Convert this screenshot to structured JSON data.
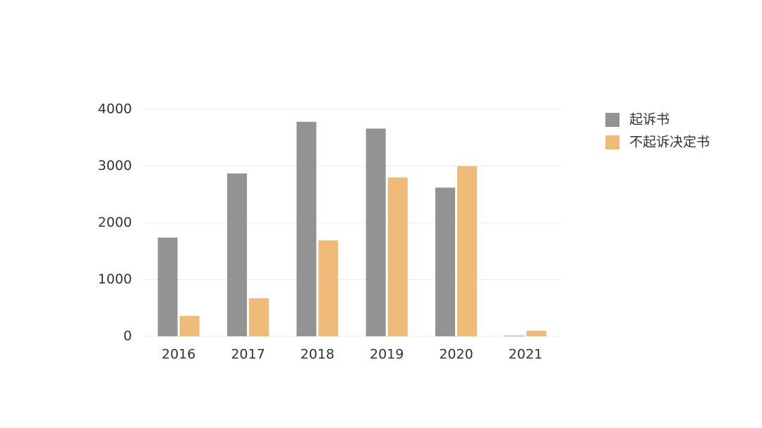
{
  "chart_data": {
    "type": "bar",
    "categories": [
      "2016",
      "2017",
      "2018",
      "2019",
      "2020",
      "2021"
    ],
    "series": [
      {
        "name": "起诉书",
        "color": "#939393",
        "values": [
          1740,
          2870,
          3780,
          3660,
          2620,
          10
        ]
      },
      {
        "name": "不起诉决定书",
        "color": "#eebb79",
        "values": [
          360,
          670,
          1690,
          2800,
          3000,
          100
        ]
      }
    ],
    "ylim": [
      0,
      4000
    ],
    "yticks": [
      0,
      1000,
      2000,
      3000,
      4000
    ],
    "grid": true,
    "legend": "right"
  }
}
